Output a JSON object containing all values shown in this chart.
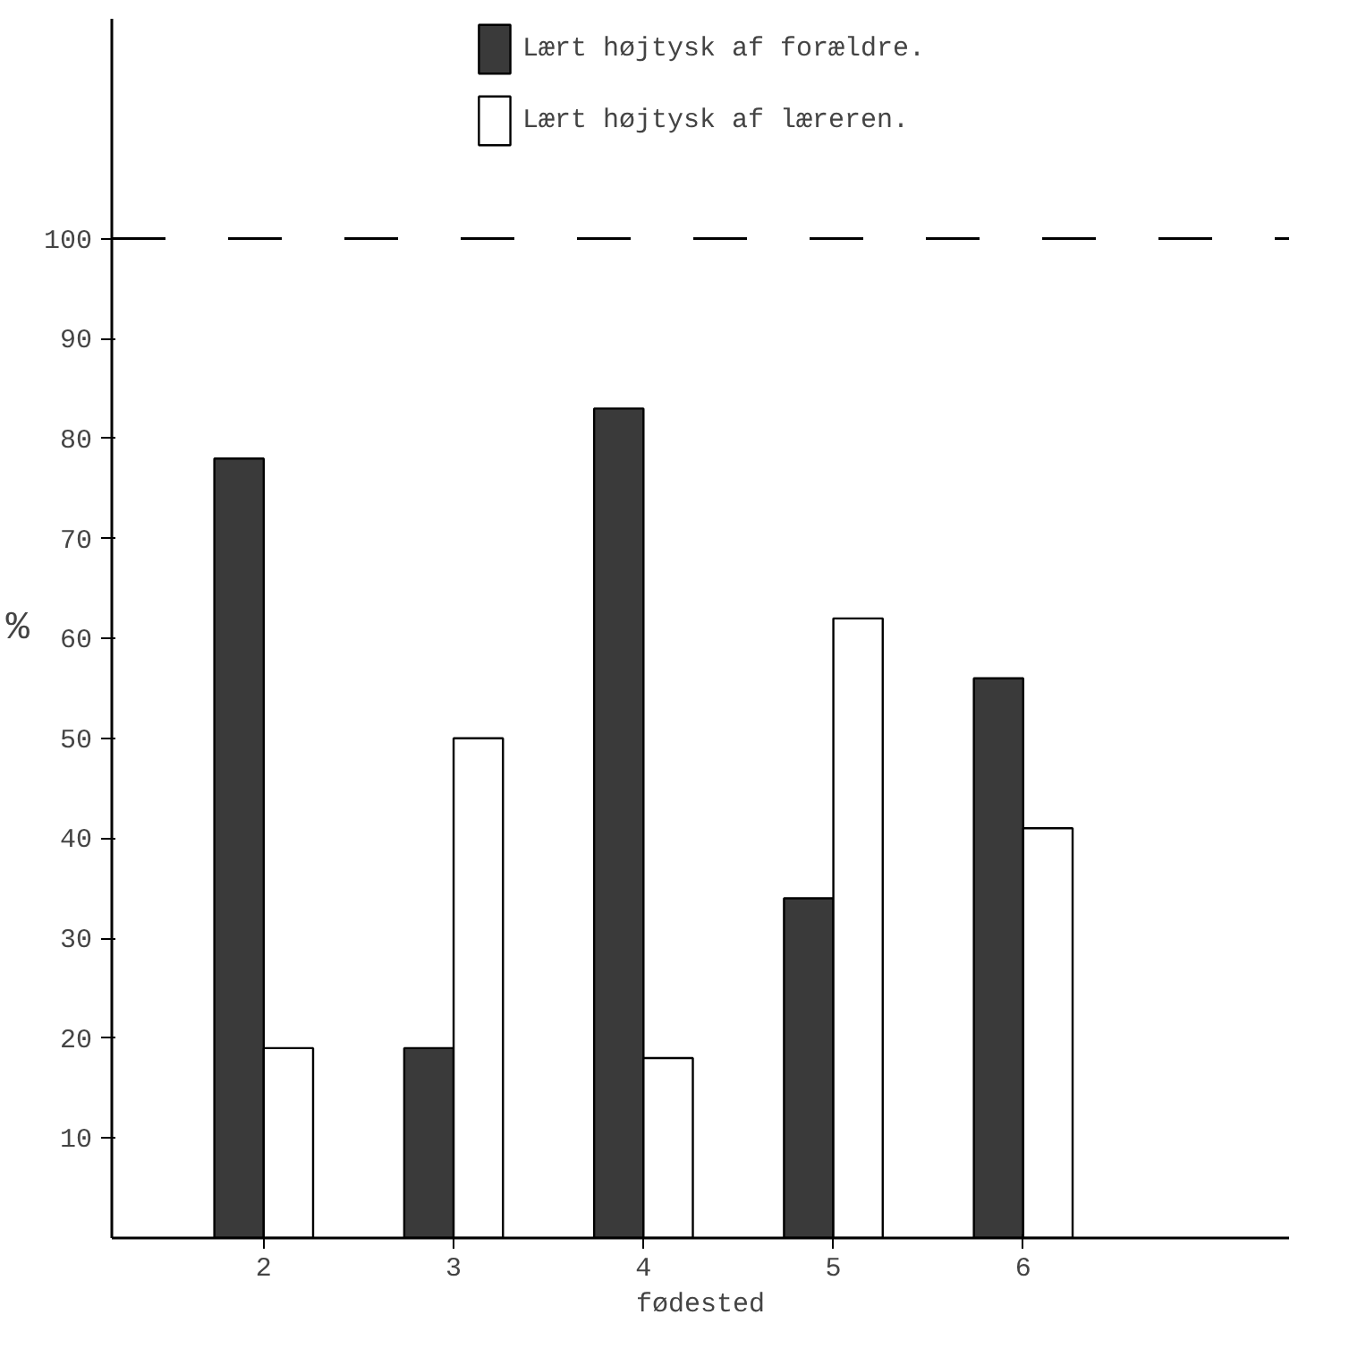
{
  "chart_data": {
    "type": "bar",
    "categories": [
      "2",
      "3",
      "4",
      "5",
      "6"
    ],
    "series": [
      {
        "name": "Lært højtysk af forældre.",
        "color": "#3a3a3a",
        "values": [
          78,
          19,
          83,
          34,
          56
        ]
      },
      {
        "name": "Lært højtysk af læreren.",
        "color": "#ffffff",
        "values": [
          19,
          50,
          18,
          62,
          41
        ]
      }
    ],
    "xlabel": "fødested",
    "ylabel": "%",
    "ylim": [
      0,
      122
    ],
    "yticks": [
      10,
      20,
      30,
      40,
      50,
      60,
      70,
      80,
      90,
      100
    ],
    "ref_lines": [
      {
        "axis": "y",
        "value": 100,
        "line_style": "dashed"
      }
    ],
    "grid": false,
    "legend": "top"
  }
}
